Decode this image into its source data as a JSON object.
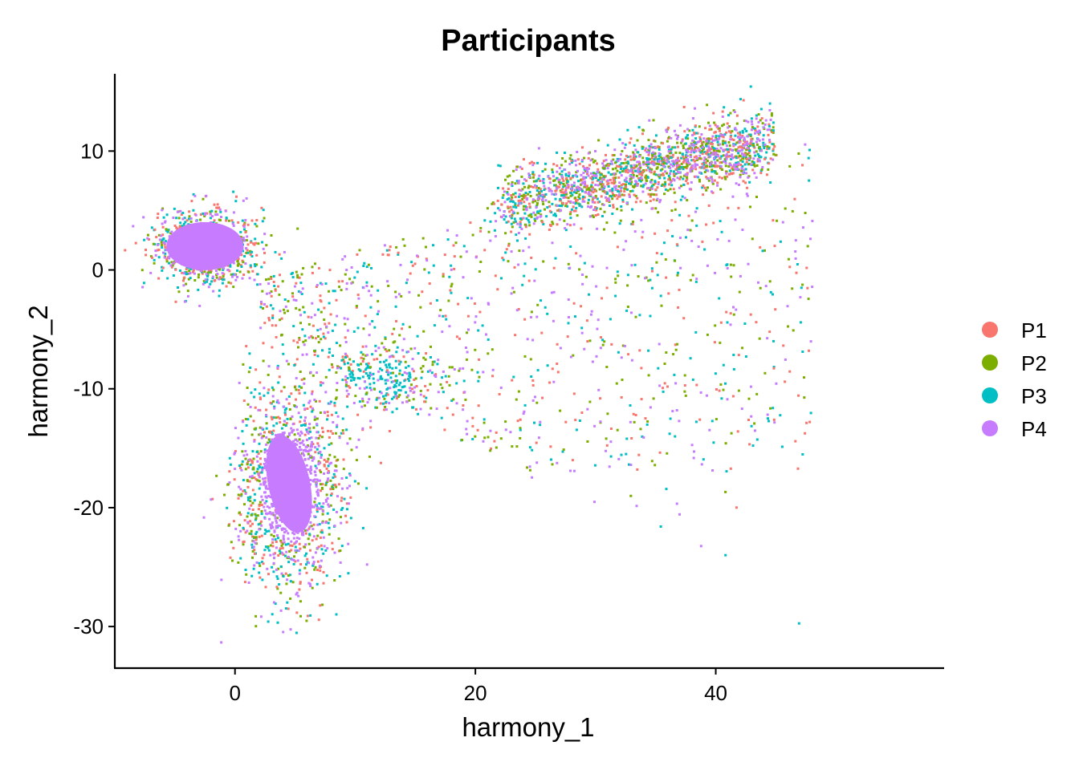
{
  "chart_data": {
    "type": "scatter",
    "title": "Participants",
    "xlabel": "harmony_1",
    "ylabel": "harmony_2",
    "xlim": [
      -10,
      59
    ],
    "ylim": [
      -33.5,
      16.5
    ],
    "x_ticks": [
      0,
      20,
      40
    ],
    "y_ticks": [
      -30,
      -20,
      -10,
      0,
      10
    ],
    "legend_position": "right",
    "series": [
      {
        "name": "P1",
        "color": "#F8766D"
      },
      {
        "name": "P2",
        "color": "#7CAE00"
      },
      {
        "name": "P3",
        "color": "#00BFC4"
      },
      {
        "name": "P4",
        "color": "#C77CFF"
      }
    ],
    "clusters": [
      {
        "id": "top-left-blob",
        "center": [
          -2.5,
          2
        ],
        "spread": [
          2.2,
          1.6
        ],
        "dense_series": "P4",
        "n": 900
      },
      {
        "id": "bottom-arm",
        "center": [
          4.5,
          -18
        ],
        "spread": [
          2.2,
          4.5
        ],
        "dense_series": "P4",
        "n": 1400
      },
      {
        "id": "upper-right-arm",
        "from": [
          22,
          5.5
        ],
        "to": [
          44,
          11
        ],
        "width": 1.4,
        "dense_series": "P4",
        "n": 1800
      },
      {
        "id": "bridge-cloud",
        "center": [
          12,
          -9
        ],
        "spread": [
          2.5,
          1.5
        ],
        "dense_series": "P3",
        "n": 250
      },
      {
        "id": "diffuse-sheet",
        "x_range": [
          2,
          48
        ],
        "y_range": [
          -17,
          13
        ],
        "n": 1000
      }
    ]
  }
}
